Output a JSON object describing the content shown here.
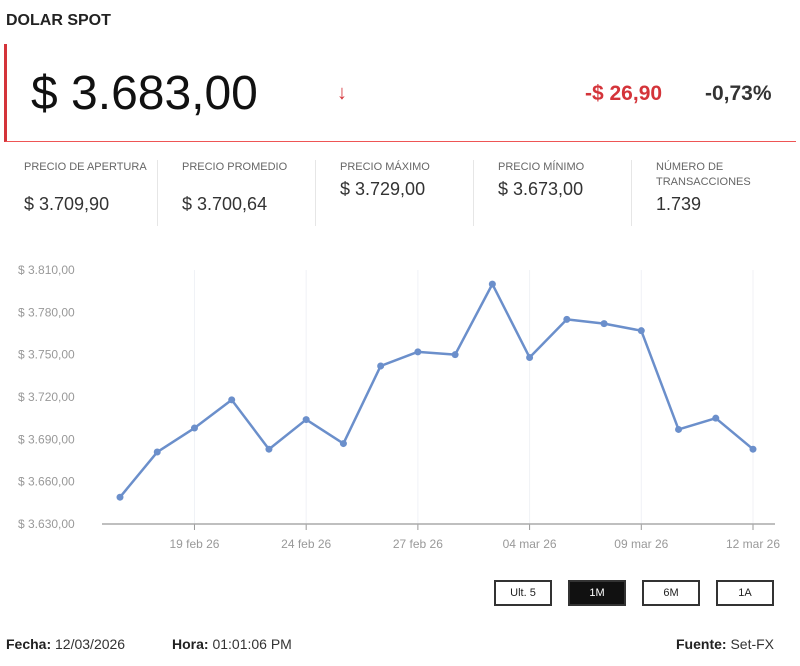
{
  "title": "DOLAR SPOT",
  "price": "$ 3.683,00",
  "direction_icon": "arrow-down-icon",
  "change": "-$ 26,90",
  "change_pct": "-0,73%",
  "stats": [
    {
      "label": "PRECIO DE APERTURA",
      "value": "$ 3.709,90"
    },
    {
      "label": "PRECIO PROMEDIO",
      "value": "$ 3.700,64"
    },
    {
      "label": "PRECIO MÁXIMO",
      "value": "$ 3.729,00"
    },
    {
      "label": "PRECIO MÍNIMO",
      "value": "$ 3.673,00"
    },
    {
      "label": "NÚMERO DE TRANSACCIONES",
      "value": "1.739"
    }
  ],
  "chart_data": {
    "type": "line",
    "x": [
      "17 feb 26",
      "18 feb 26",
      "19 feb 26",
      "20 feb 26",
      "23 feb 26",
      "24 feb 26",
      "25 feb 26",
      "26 feb 26",
      "27 feb 26",
      "02 mar 26",
      "03 mar 26",
      "04 mar 26",
      "05 mar 26",
      "06 mar 26",
      "09 mar 26",
      "10 mar 26",
      "11 mar 26",
      "12 mar 26"
    ],
    "values": [
      3649,
      3681,
      3698,
      3718,
      3683,
      3704,
      3687,
      3742,
      3752,
      3750,
      3800,
      3748,
      3775,
      3772,
      3767,
      3697,
      3705,
      3683
    ],
    "ylim": [
      3630,
      3810
    ],
    "yticks": [
      "$ 3.630,00",
      "$ 3.660,00",
      "$ 3.690,00",
      "$ 3.720,00",
      "$ 3.750,00",
      "$ 3.780,00",
      "$ 3.810,00"
    ],
    "xticks": [
      {
        "index": 2,
        "label": "19 feb 26"
      },
      {
        "index": 5,
        "label": "24 feb 26"
      },
      {
        "index": 8,
        "label": "27 feb 26"
      },
      {
        "index": 11,
        "label": "04 mar 26"
      },
      {
        "index": 14,
        "label": "09 mar 26"
      },
      {
        "index": 17,
        "label": "12 mar 26"
      }
    ],
    "color": "#6b8fcb",
    "grid": "vertical"
  },
  "ranges": [
    {
      "label": "Ult. 5",
      "active": false
    },
    {
      "label": "1M",
      "active": true
    },
    {
      "label": "6M",
      "active": false
    },
    {
      "label": "1A",
      "active": false
    }
  ],
  "footer": {
    "fecha_label": "Fecha:",
    "fecha": "12/03/2026",
    "hora_label": "Hora:",
    "hora": "01:01:06 PM",
    "fuente_label": "Fuente:",
    "fuente": "Set-FX"
  }
}
